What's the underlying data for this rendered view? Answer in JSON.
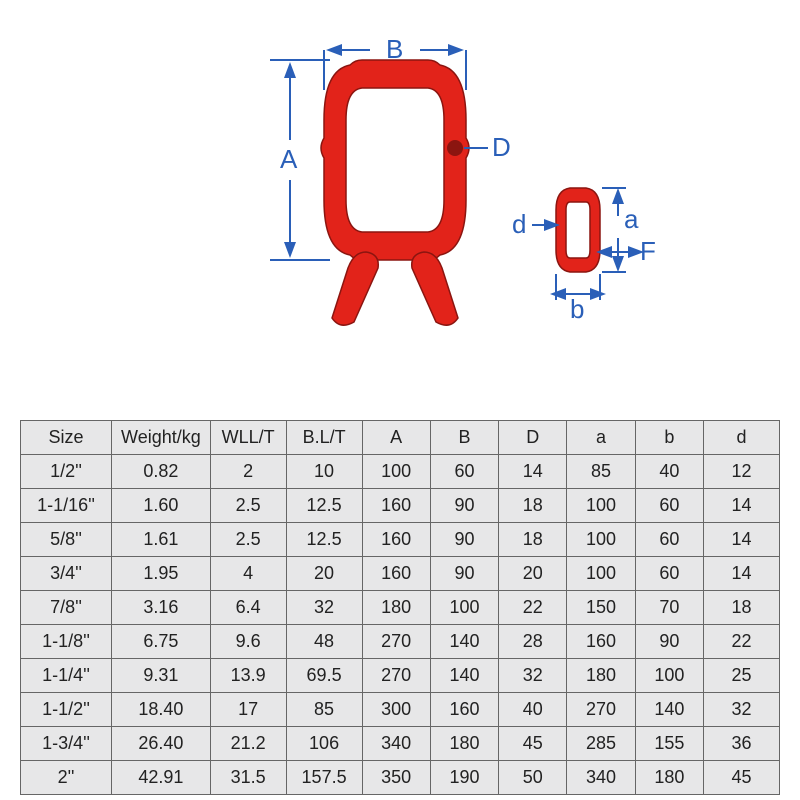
{
  "diagram": {
    "red": "#e2231a",
    "red_dark": "#8b1510",
    "blue": "#2a5fb8",
    "labels": {
      "A": "A",
      "B": "B",
      "D": "D",
      "a": "a",
      "b": "b",
      "d": "d",
      "F": "F"
    }
  },
  "table": {
    "columns": [
      "Size",
      "Weight/kg",
      "WLL/T",
      "B.L/T",
      "A",
      "B",
      "D",
      "a",
      "b",
      "d"
    ],
    "rows": [
      [
        "1/2''",
        "0.82",
        "2",
        "10",
        "100",
        "60",
        "14",
        "85",
        "40",
        "12"
      ],
      [
        "1-1/16''",
        "1.60",
        "2.5",
        "12.5",
        "160",
        "90",
        "18",
        "100",
        "60",
        "14"
      ],
      [
        "5/8''",
        "1.61",
        "2.5",
        "12.5",
        "160",
        "90",
        "18",
        "100",
        "60",
        "14"
      ],
      [
        "3/4''",
        "1.95",
        "4",
        "20",
        "160",
        "90",
        "20",
        "100",
        "60",
        "14"
      ],
      [
        "7/8''",
        "3.16",
        "6.4",
        "32",
        "180",
        "100",
        "22",
        "150",
        "70",
        "18"
      ],
      [
        "1-1/8''",
        "6.75",
        "9.6",
        "48",
        "270",
        "140",
        "28",
        "160",
        "90",
        "22"
      ],
      [
        "1-1/4''",
        "9.31",
        "13.9",
        "69.5",
        "270",
        "140",
        "32",
        "180",
        "100",
        "25"
      ],
      [
        "1-1/2''",
        "18.40",
        "17",
        "85",
        "300",
        "160",
        "40",
        "270",
        "140",
        "32"
      ],
      [
        "1-3/4''",
        "26.40",
        "21.2",
        "106",
        "340",
        "180",
        "45",
        "285",
        "155",
        "36"
      ],
      [
        "2''",
        "42.91",
        "31.5",
        "157.5",
        "350",
        "190",
        "50",
        "340",
        "180",
        "45"
      ]
    ],
    "col_widths_pct": [
      12,
      13,
      10,
      10,
      9,
      9,
      9,
      9,
      9,
      10
    ]
  }
}
